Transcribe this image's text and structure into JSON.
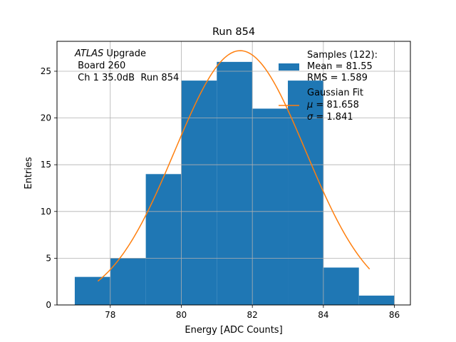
{
  "chart_data": {
    "type": "bar",
    "title": "Run 854",
    "xlabel": "Energy [ADC Counts]",
    "ylabel": "Entries",
    "xlim": [
      76.5,
      86.45
    ],
    "ylim": [
      0,
      28.2
    ],
    "xticks": [
      78,
      80,
      82,
      84,
      86
    ],
    "yticks": [
      0,
      5,
      10,
      15,
      20,
      25
    ],
    "grid": true,
    "bin_edges": [
      77,
      78,
      79,
      80,
      81,
      82,
      83,
      84,
      85,
      86
    ],
    "counts": [
      3,
      5,
      14,
      24,
      26,
      21,
      24,
      4,
      1
    ],
    "bar_color": "#1f77b4",
    "fit": {
      "name": "Gaussian Fit",
      "mu": 81.658,
      "sigma": 1.841,
      "amplitude": 27.2,
      "x_range": [
        77.65,
        85.3
      ],
      "color": "#ff7f0e"
    },
    "annotation": {
      "line1_italic": "ATLAS",
      "line1_rest": " Upgrade",
      "line2": " Board 260",
      "line3": " Ch 1 35.0dB  Run 854"
    },
    "legend": {
      "position": "top-right",
      "samples_title": "Samples (122):",
      "samples_mean": "Mean = 81.55",
      "samples_rms": "RMS = 1.589",
      "fit_title": "Gaussian Fit",
      "fit_mu_symbol": "μ",
      "fit_mu_value": " = 81.658",
      "fit_sigma_symbol": "σ",
      "fit_sigma_value": " = 1.841"
    }
  }
}
